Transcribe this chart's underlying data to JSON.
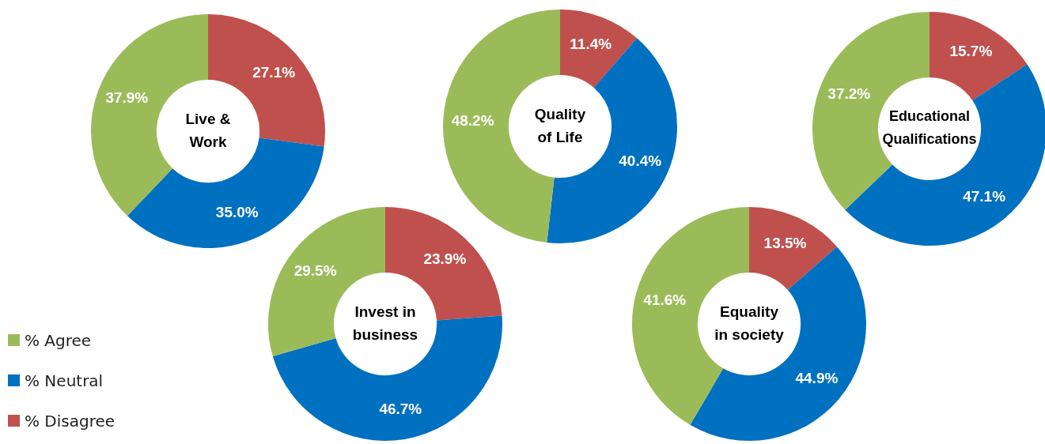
{
  "chart_data": [
    {
      "type": "donut",
      "title": "Live & Work",
      "categories": [
        "% Disagree",
        "% Neutral",
        "% Agree"
      ],
      "values": [
        27.1,
        35.0,
        37.9
      ],
      "colors": [
        "#c0504d",
        "#0070c0",
        "#9bbb59"
      ],
      "value_labels": [
        "27.1%",
        "35.0%",
        "37.9%"
      ],
      "legend": "bottom left"
    },
    {
      "type": "donut",
      "title": "Quality of Life",
      "categories": [
        null,
        null,
        null
      ],
      "values": [
        11.4,
        40.4,
        48.2
      ],
      "colors": [
        "#c0504d",
        "#0070c0",
        "#9bbb59"
      ],
      "value_labels": [
        "11.4%",
        "40.4%",
        "48.2%"
      ]
    },
    {
      "type": "donut",
      "title": "Educational Qualifications",
      "categories": [
        null,
        null,
        null
      ],
      "values": [
        15.7,
        47.1,
        37.2
      ],
      "colors": [
        "#c0504d",
        "#0070c0",
        "#9bbb59"
      ],
      "value_labels": [
        "15.7%",
        "47.1%",
        "37.2%"
      ]
    },
    {
      "type": "donut",
      "title": "Invest in business",
      "categories": [
        null,
        null,
        null
      ],
      "values": [
        23.9,
        46.7,
        29.5
      ],
      "colors": [
        "#c0504d",
        "#0070c0",
        "#9bbb59"
      ],
      "value_labels": [
        "23.9%",
        "46.7%",
        "29.5%"
      ]
    },
    {
      "type": "donut",
      "title": "Equality in society",
      "categories": [
        null,
        null,
        null
      ],
      "values": [
        13.5,
        44.9,
        41.6
      ],
      "colors": [
        "#c0504d",
        "#0070c0",
        "#9bbb59"
      ],
      "value_labels": [
        "13.5%",
        "44.9%",
        "41.6%"
      ]
    }
  ]
}
